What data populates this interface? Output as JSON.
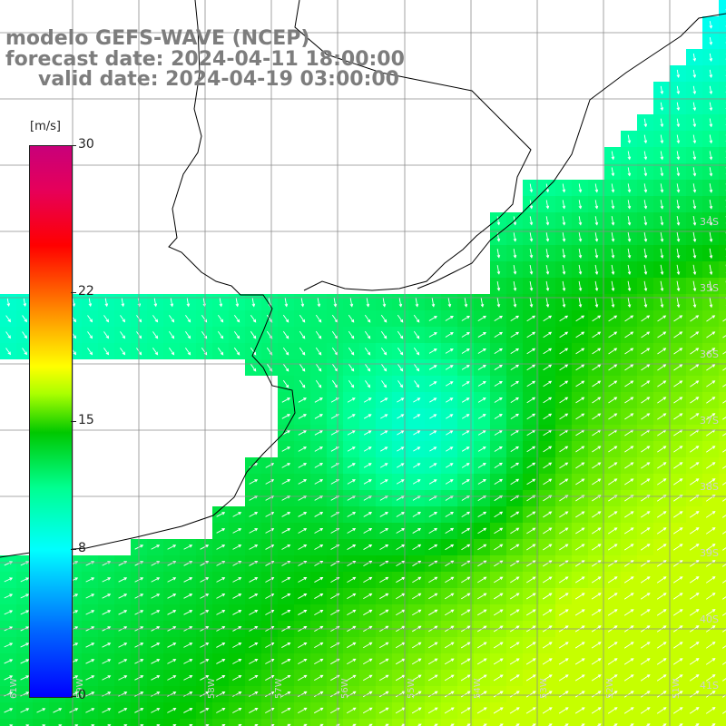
{
  "header": {
    "title": "modelo GEFS-WAVE (NCEP)",
    "forecast": "forecast date: 2024-04-11 18:00:00",
    "valid": "valid date: 2024-04-19 03:00:00"
  },
  "colorbar": {
    "unit": "[m/s]",
    "ticks": [
      "30",
      "22",
      "15",
      "8",
      "0"
    ],
    "values": [
      30,
      22,
      15,
      8,
      0
    ],
    "range": [
      0,
      30
    ]
  },
  "map": {
    "colors": {
      "background": "#ffffff",
      "land_outline": "#000000",
      "grid": "#8c8c8c",
      "arrow": "#ffffff"
    },
    "lat_labels": [
      "34S",
      "35S",
      "36S",
      "37S",
      "38S",
      "39S",
      "40S",
      "41S"
    ],
    "lon_labels": [
      "61W",
      "59W",
      "58W",
      "57W",
      "56W",
      "55W",
      "54W",
      "53W",
      "52W",
      "51W"
    ]
  }
}
